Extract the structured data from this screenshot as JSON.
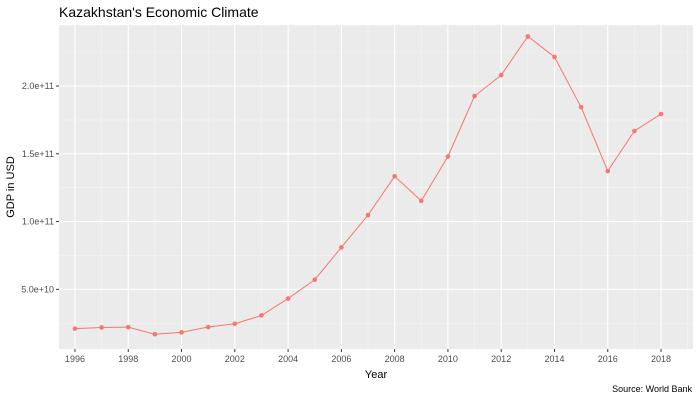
{
  "chart_data": {
    "type": "line",
    "title": "Kazakhstan's Economic Climate",
    "xlabel": "Year",
    "ylabel": "GDP in USD",
    "caption": "Source: World Bank",
    "x": [
      1996,
      1997,
      1998,
      1999,
      2000,
      2001,
      2002,
      2003,
      2004,
      2005,
      2006,
      2007,
      2008,
      2009,
      2010,
      2011,
      2012,
      2013,
      2014,
      2015,
      2016,
      2017,
      2018
    ],
    "y": [
      21000000000,
      21900000000,
      22100000000,
      16900000000,
      18300000000,
      22200000000,
      24600000000,
      30800000000,
      43200000000,
      57100000000,
      81000000000,
      104800000000,
      133400000000,
      115300000000,
      148000000000,
      192600000000,
      208000000000,
      236600000000,
      221400000000,
      184400000000,
      137300000000,
      166800000000,
      179300000000
    ],
    "x_ticks": [
      "1996",
      "1998",
      "2000",
      "2002",
      "2004",
      "2006",
      "2008",
      "2010",
      "2012",
      "2014",
      "2016",
      "2018"
    ],
    "y_ticks": [
      "5.0e+10",
      "1.0e+11",
      "1.5e+11",
      "2.0e+11"
    ],
    "y_tick_values": [
      50000000000,
      100000000000,
      150000000000,
      200000000000
    ],
    "xlim": [
      1995.4,
      2019.2
    ],
    "ylim": [
      6000000000,
      245000000000
    ],
    "grid": true,
    "colors": {
      "line": "#F8766D",
      "panel": "#EBEBEB",
      "grid_major": "#FFFFFF",
      "grid_minor": "#F5F5F5"
    }
  }
}
